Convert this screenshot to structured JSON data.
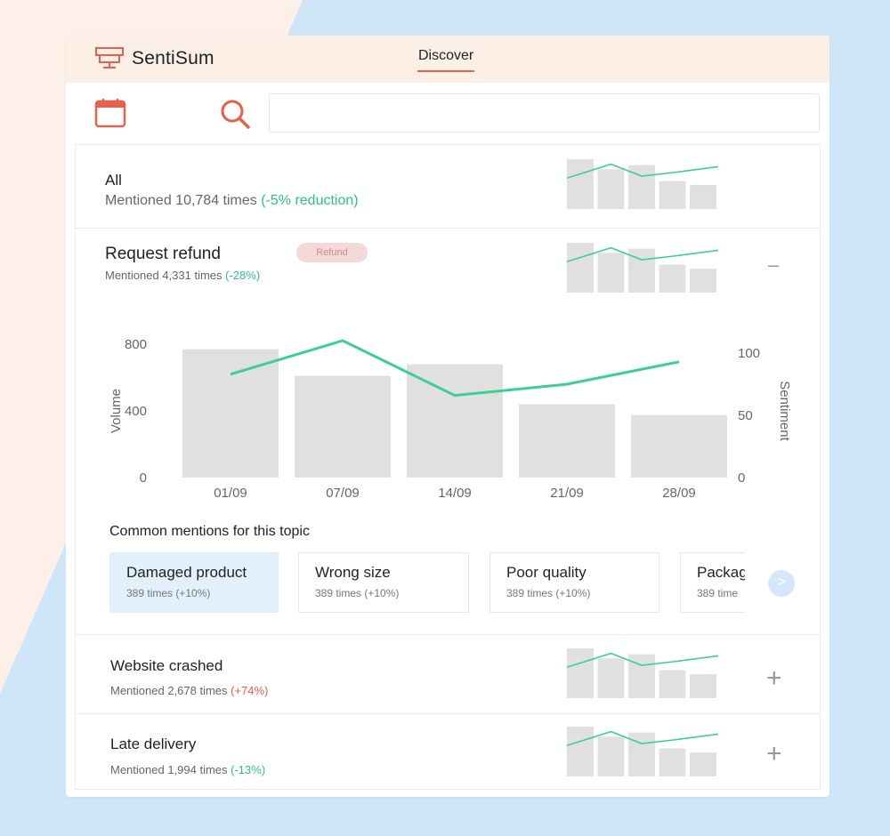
{
  "app": {
    "name": "SentiSum",
    "nav_tab": "Discover"
  },
  "colors": {
    "accent": "#e8604c",
    "positive": "#2ec08b",
    "negative": "#e8604c",
    "bar": "#e0e0e0",
    "line": "#3ccf94",
    "selected_chip": "#e1f0fb"
  },
  "toolbar": {
    "calendar_icon": "calendar-icon",
    "search_icon": "search-icon",
    "search_value": ""
  },
  "topics": {
    "all": {
      "title": "All",
      "sub_prefix": "Mentioned 10,784 times ",
      "change": "(-5% reduction)"
    },
    "refund": {
      "title": "Request refund",
      "badge": "Refund",
      "sub_prefix": "Mentioned 4,331 times ",
      "change": "(-28%)",
      "collapse_symbol": "–"
    },
    "crashed": {
      "title": "Website crashed",
      "sub_prefix": "Mentioned 2,678 times ",
      "change": "(+74%)",
      "expand_symbol": "+"
    },
    "delivery": {
      "title": "Late delivery",
      "sub_prefix": "Mentioned 1,994 times ",
      "change": "(-13%)",
      "expand_symbol": "+"
    }
  },
  "chart_data": {
    "type": "bar",
    "categories": [
      "01/09",
      "07/09",
      "14/09",
      "21/09",
      "28/09"
    ],
    "series": [
      {
        "name": "Volume",
        "values": [
          770,
          610,
          680,
          440,
          375
        ],
        "axis": "left"
      },
      {
        "name": "Sentiment",
        "values": [
          83,
          110,
          66,
          75,
          93
        ],
        "axis": "right",
        "render": "line"
      }
    ],
    "ylabel": "Volume",
    "y2label": "Sentiment",
    "ylim": [
      0,
      800
    ],
    "y2lim": [
      0,
      100
    ],
    "yticks": [
      "0",
      "400",
      "800"
    ],
    "y2ticks": [
      "0",
      "50",
      "100"
    ],
    "grid": false
  },
  "mentions": {
    "label": "Common mentions for this topic",
    "items": [
      {
        "title": "Damaged product",
        "sub": "389 times (+10%)",
        "selected": true
      },
      {
        "title": "Wrong size",
        "sub": "389 times (+10%)",
        "selected": false
      },
      {
        "title": "Poor quality",
        "sub": "389 times (+10%)",
        "selected": false
      },
      {
        "title": "Packag",
        "sub": "389 time",
        "selected": false
      }
    ],
    "next_symbol": ">"
  },
  "sparkline": {
    "bars": [
      1.0,
      0.8,
      0.88,
      0.56,
      0.48
    ],
    "line": [
      0.62,
      0.9,
      0.66,
      0.73,
      0.85
    ]
  }
}
